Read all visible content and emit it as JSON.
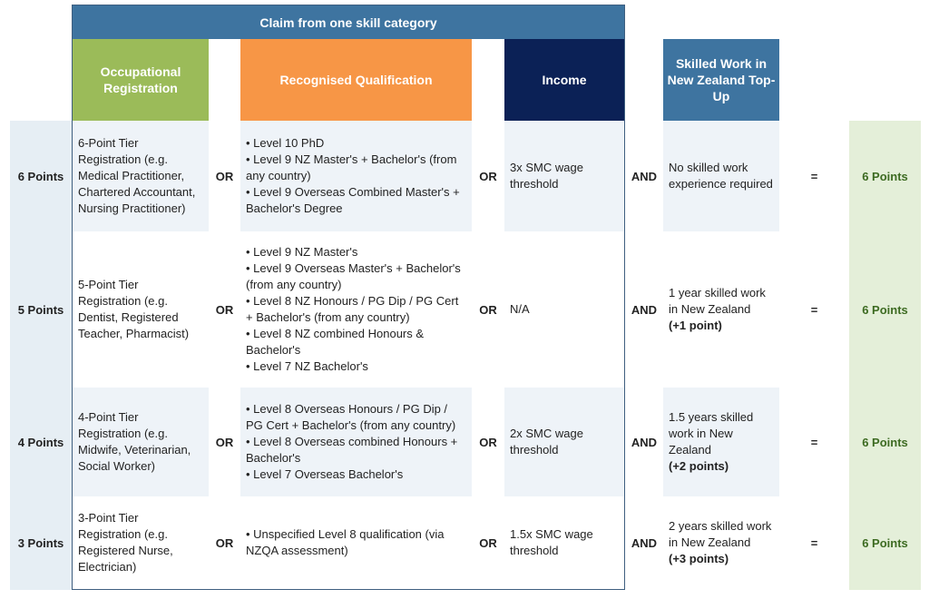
{
  "header": {
    "banner": "Claim from one skill category",
    "occupational": "Occupational Registration",
    "qualification": "Recognised Qualification",
    "income": "Income",
    "topup": "Skilled Work in New Zealand Top-Up"
  },
  "connectors": {
    "or": "OR",
    "and": "AND",
    "equals": "="
  },
  "rows": [
    {
      "points": "6 Points",
      "registration": "6-Point Tier Registration (e.g. Medical Practitioner, Chartered Accountant, Nursing Practitioner)",
      "qualifications": [
        "Level 10 PhD",
        "Level 9 NZ Master's + Bachelor's (from any country)",
        "Level 9 Overseas Combined Master's + Bachelor's Degree"
      ],
      "income": "3x SMC wage threshold",
      "topup": "No skilled work experience required",
      "topup_bonus": "",
      "result": "6 Points"
    },
    {
      "points": "5 Points",
      "registration": "5-Point Tier Registration (e.g. Dentist, Registered Teacher, Pharmacist)",
      "qualifications": [
        "Level 9 NZ Master's",
        "Level 9 Overseas Master's + Bachelor's (from any country)",
        "Level 8 NZ Honours / PG Dip / PG Cert + Bachelor's (from any country)",
        "Level 8 NZ combined Honours & Bachelor's",
        "Level 7 NZ Bachelor's"
      ],
      "income": "N/A",
      "topup": "1 year skilled work in New Zealand",
      "topup_bonus": "(+1 point)",
      "result": "6 Points"
    },
    {
      "points": "4 Points",
      "registration": "4-Point Tier Registration (e.g. Midwife, Veterinarian, Social Worker)",
      "qualifications": [
        "Level 8 Overseas Honours / PG Dip / PG Cert + Bachelor's (from any country)",
        "Level 8 Overseas combined Honours + Bachelor's",
        "Level 7 Overseas Bachelor's"
      ],
      "income": "2x SMC wage threshold",
      "topup": "1.5 years skilled work in New Zealand",
      "topup_bonus": "(+2 points)",
      "result": "6 Points"
    },
    {
      "points": "3 Points",
      "registration": "3-Point Tier Registration (e.g. Registered Nurse, Electrician)",
      "qualifications": [
        "Unspecified Level 8 qualification (via NZQA assessment)"
      ],
      "income": "1.5x SMC wage threshold",
      "topup": "2 years skilled work in New Zealand",
      "topup_bonus": "(+3 points)",
      "result": "6 Points"
    }
  ]
}
